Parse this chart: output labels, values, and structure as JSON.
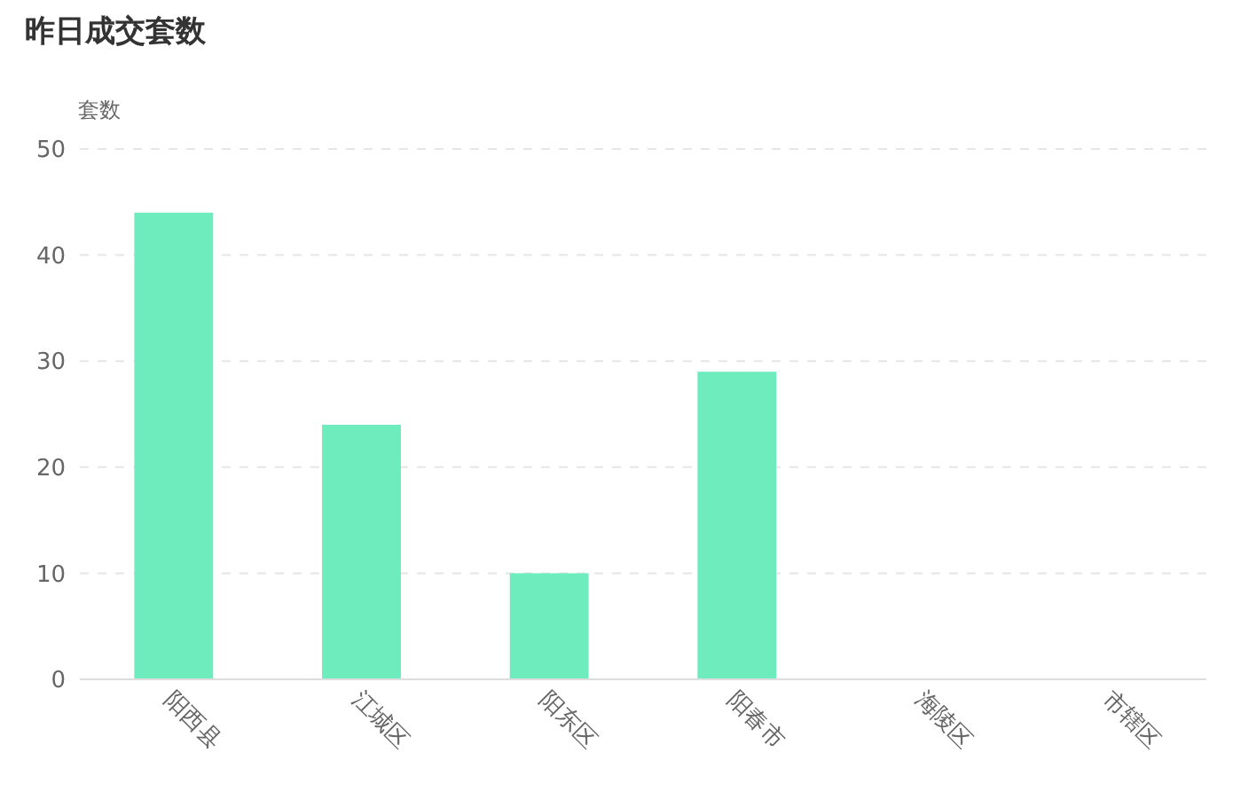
{
  "chart_data": {
    "type": "bar",
    "title": "昨日成交套数",
    "ylabel": "套数",
    "categories": [
      "阳西县",
      "江城区",
      "阳东区",
      "阳春市",
      "海陵区",
      "市辖区"
    ],
    "values": [
      44,
      24,
      10,
      29,
      0,
      0
    ],
    "color": "#6eecbe",
    "ylim": [
      0,
      50
    ],
    "yticks": [
      0,
      10,
      20,
      30,
      40,
      50
    ],
    "grid": "y"
  }
}
